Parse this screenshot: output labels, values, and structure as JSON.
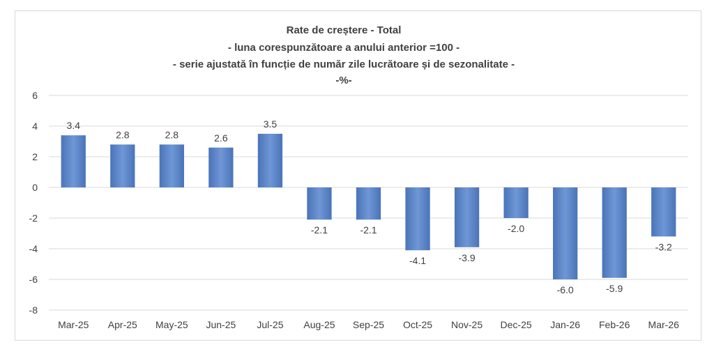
{
  "chart_data": {
    "type": "bar",
    "title_lines": [
      "Rate de creștere - Total",
      "- luna corespunzătoare a anului anterior =100 -",
      "- serie ajustată în funcție de număr zile lucrătoare și de sezonalitate -",
      "-%-"
    ],
    "categories": [
      "Mar-25",
      "Apr-25",
      "May-25",
      "Jun-25",
      "Jul-25",
      "Aug-25",
      "Sep-25",
      "Oct-25",
      "Nov-25",
      "Dec-25",
      "Jan-26",
      "Feb-26",
      "Mar-26"
    ],
    "values": [
      3.4,
      2.8,
      2.8,
      2.6,
      3.5,
      -2.1,
      -2.1,
      -4.1,
      -3.9,
      -2.0,
      -6.0,
      -5.9,
      -3.2
    ],
    "value_labels": [
      "3.4",
      "2.8",
      "2.8",
      "2.6",
      "3.5",
      "-2.1",
      "-2.1",
      "-4.1",
      "-3.9",
      "-2.0",
      "-6.0",
      "-5.9",
      "-3.2"
    ],
    "ylim": [
      -8,
      6
    ],
    "yticks": [
      6,
      4,
      2,
      0,
      -2,
      -4,
      -6,
      -8
    ],
    "ytick_labels": [
      "6",
      "4",
      "2",
      "0",
      "-2",
      "-4",
      "-6",
      "-8"
    ],
    "grid": true,
    "legend": "none",
    "bar_color": "#6f97d6",
    "bar_color_dark": "#4a74b8"
  }
}
